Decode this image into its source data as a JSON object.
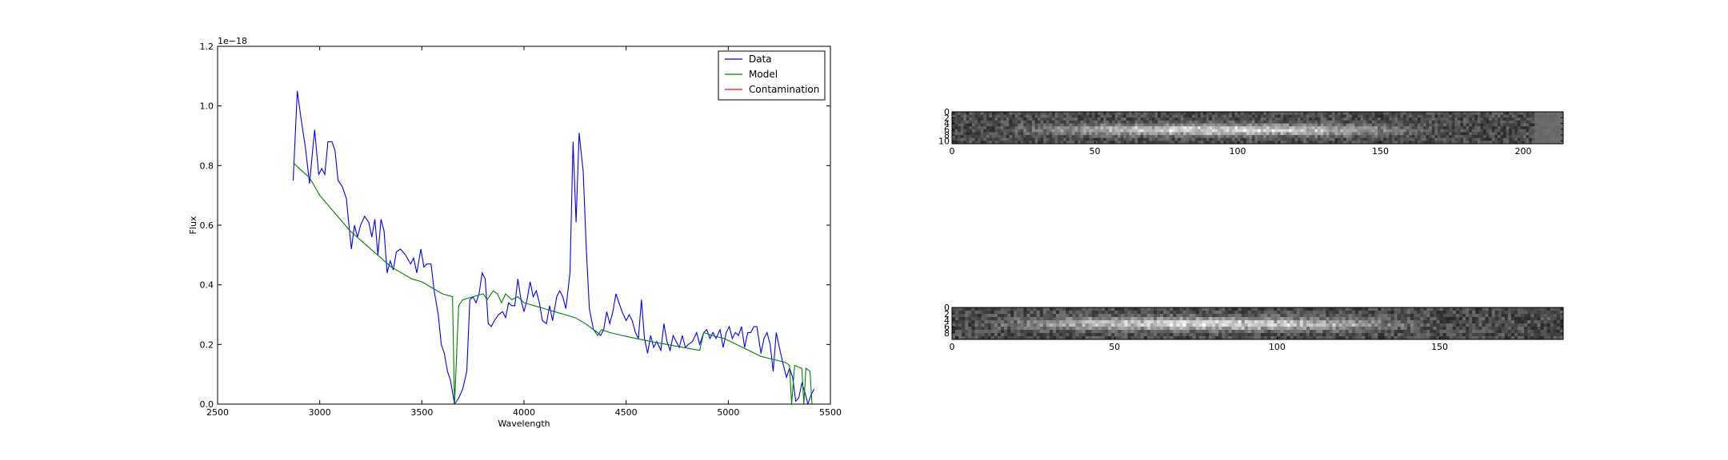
{
  "chart_data": [
    {
      "type": "line",
      "xlabel": "Wavelength",
      "ylabel": "Flux",
      "offset_text": "1e−18",
      "xlim": [
        2500,
        5500
      ],
      "ylim": [
        0.0,
        1.2
      ],
      "xticks": [
        2500,
        3000,
        3500,
        4000,
        4500,
        5000,
        5500
      ],
      "yticks": [
        0.0,
        0.2,
        0.4,
        0.6,
        0.8,
        1.0,
        1.2
      ],
      "xtick_labels": [
        "2500",
        "3000",
        "3500",
        "4000",
        "4500",
        "5000",
        "5500"
      ],
      "ytick_labels": [
        "0.0",
        "0.2",
        "0.4",
        "0.6",
        "0.8",
        "1.0",
        "1.2"
      ],
      "legend_position": "top-right",
      "series": [
        {
          "name": "Data",
          "color": "#0000ff",
          "points": [
            [
              2870,
              0.75
            ],
            [
              2890,
              1.05
            ],
            [
              2910,
              0.95
            ],
            [
              2930,
              0.86
            ],
            [
              2950,
              0.74
            ],
            [
              2975,
              0.92
            ],
            [
              2995,
              0.77
            ],
            [
              3010,
              0.79
            ],
            [
              3025,
              0.77
            ],
            [
              3040,
              0.88
            ],
            [
              3060,
              0.88
            ],
            [
              3075,
              0.85
            ],
            [
              3090,
              0.75
            ],
            [
              3110,
              0.73
            ],
            [
              3130,
              0.69
            ],
            [
              3155,
              0.52
            ],
            [
              3170,
              0.6
            ],
            [
              3185,
              0.56
            ],
            [
              3200,
              0.6
            ],
            [
              3220,
              0.63
            ],
            [
              3240,
              0.61
            ],
            [
              3255,
              0.56
            ],
            [
              3270,
              0.62
            ],
            [
              3285,
              0.5
            ],
            [
              3300,
              0.62
            ],
            [
              3315,
              0.58
            ],
            [
              3330,
              0.44
            ],
            [
              3345,
              0.48
            ],
            [
              3360,
              0.45
            ],
            [
              3375,
              0.51
            ],
            [
              3395,
              0.52
            ],
            [
              3420,
              0.5
            ],
            [
              3445,
              0.47
            ],
            [
              3460,
              0.49
            ],
            [
              3475,
              0.44
            ],
            [
              3495,
              0.52
            ],
            [
              3510,
              0.46
            ],
            [
              3525,
              0.47
            ],
            [
              3545,
              0.47
            ],
            [
              3560,
              0.38
            ],
            [
              3580,
              0.3
            ],
            [
              3595,
              0.2
            ],
            [
              3610,
              0.17
            ],
            [
              3625,
              0.11
            ],
            [
              3640,
              0.08
            ],
            [
              3660,
              0.0
            ],
            [
              3680,
              0.02
            ],
            [
              3700,
              0.05
            ],
            [
              3720,
              0.11
            ],
            [
              3735,
              0.35
            ],
            [
              3750,
              0.36
            ],
            [
              3765,
              0.34
            ],
            [
              3780,
              0.37
            ],
            [
              3795,
              0.44
            ],
            [
              3810,
              0.42
            ],
            [
              3825,
              0.27
            ],
            [
              3840,
              0.26
            ],
            [
              3855,
              0.28
            ],
            [
              3875,
              0.3
            ],
            [
              3895,
              0.31
            ],
            [
              3910,
              0.29
            ],
            [
              3925,
              0.34
            ],
            [
              3940,
              0.33
            ],
            [
              3955,
              0.33
            ],
            [
              3970,
              0.42
            ],
            [
              3985,
              0.35
            ],
            [
              4000,
              0.31
            ],
            [
              4015,
              0.35
            ],
            [
              4030,
              0.41
            ],
            [
              4045,
              0.36
            ],
            [
              4060,
              0.38
            ],
            [
              4075,
              0.34
            ],
            [
              4090,
              0.28
            ],
            [
              4110,
              0.27
            ],
            [
              4125,
              0.33
            ],
            [
              4140,
              0.28
            ],
            [
              4160,
              0.36
            ],
            [
              4175,
              0.38
            ],
            [
              4190,
              0.36
            ],
            [
              4205,
              0.32
            ],
            [
              4225,
              0.44
            ],
            [
              4240,
              0.88
            ],
            [
              4255,
              0.61
            ],
            [
              4270,
              0.91
            ],
            [
              4290,
              0.78
            ],
            [
              4305,
              0.52
            ],
            [
              4320,
              0.32
            ],
            [
              4340,
              0.25
            ],
            [
              4360,
              0.24
            ],
            [
              4375,
              0.23
            ],
            [
              4390,
              0.25
            ],
            [
              4405,
              0.31
            ],
            [
              4420,
              0.27
            ],
            [
              4435,
              0.31
            ],
            [
              4450,
              0.37
            ],
            [
              4465,
              0.34
            ],
            [
              4480,
              0.31
            ],
            [
              4500,
              0.28
            ],
            [
              4515,
              0.3
            ],
            [
              4530,
              0.28
            ],
            [
              4545,
              0.24
            ],
            [
              4560,
              0.22
            ],
            [
              4575,
              0.35
            ],
            [
              4590,
              0.22
            ],
            [
              4605,
              0.17
            ],
            [
              4620,
              0.23
            ],
            [
              4635,
              0.19
            ],
            [
              4650,
              0.21
            ],
            [
              4670,
              0.18
            ],
            [
              4685,
              0.27
            ],
            [
              4700,
              0.21
            ],
            [
              4715,
              0.18
            ],
            [
              4730,
              0.23
            ],
            [
              4745,
              0.21
            ],
            [
              4760,
              0.19
            ],
            [
              4775,
              0.23
            ],
            [
              4790,
              0.19
            ],
            [
              4805,
              0.2
            ],
            [
              4825,
              0.21
            ],
            [
              4845,
              0.24
            ],
            [
              4860,
              0.2
            ],
            [
              4880,
              0.24
            ],
            [
              4895,
              0.25
            ],
            [
              4910,
              0.22
            ],
            [
              4925,
              0.24
            ],
            [
              4940,
              0.22
            ],
            [
              4960,
              0.25
            ],
            [
              4975,
              0.19
            ],
            [
              4990,
              0.24
            ],
            [
              5005,
              0.26
            ],
            [
              5020,
              0.22
            ],
            [
              5035,
              0.24
            ],
            [
              5050,
              0.23
            ],
            [
              5065,
              0.26
            ],
            [
              5080,
              0.19
            ],
            [
              5095,
              0.24
            ],
            [
              5110,
              0.24
            ],
            [
              5125,
              0.26
            ],
            [
              5140,
              0.26
            ],
            [
              5160,
              0.17
            ],
            [
              5175,
              0.22
            ],
            [
              5190,
              0.24
            ],
            [
              5205,
              0.2
            ],
            [
              5220,
              0.11
            ],
            [
              5235,
              0.24
            ],
            [
              5250,
              0.19
            ],
            [
              5270,
              0.13
            ],
            [
              5285,
              0.09
            ],
            [
              5300,
              0.12
            ],
            [
              5315,
              0.09
            ],
            [
              5330,
              0.01
            ],
            [
              5345,
              0.02
            ],
            [
              5360,
              0.07
            ],
            [
              5375,
              0.04
            ],
            [
              5390,
              0.0
            ],
            [
              5405,
              0.03
            ],
            [
              5420,
              0.05
            ]
          ]
        },
        {
          "name": "Model",
          "color": "#008000",
          "points": [
            [
              2870,
              0.81
            ],
            [
              2900,
              0.79
            ],
            [
              2950,
              0.76
            ],
            [
              3000,
              0.7
            ],
            [
              3050,
              0.66
            ],
            [
              3100,
              0.62
            ],
            [
              3150,
              0.58
            ],
            [
              3200,
              0.55
            ],
            [
              3250,
              0.52
            ],
            [
              3300,
              0.49
            ],
            [
              3350,
              0.46
            ],
            [
              3400,
              0.44
            ],
            [
              3450,
              0.42
            ],
            [
              3500,
              0.41
            ],
            [
              3550,
              0.39
            ],
            [
              3600,
              0.37
            ],
            [
              3650,
              0.36
            ],
            [
              3660,
              0.0
            ],
            [
              3680,
              0.33
            ],
            [
              3700,
              0.35
            ],
            [
              3750,
              0.36
            ],
            [
              3800,
              0.37
            ],
            [
              3820,
              0.35
            ],
            [
              3850,
              0.38
            ],
            [
              3870,
              0.37
            ],
            [
              3890,
              0.34
            ],
            [
              3910,
              0.37
            ],
            [
              3940,
              0.35
            ],
            [
              3970,
              0.36
            ],
            [
              4000,
              0.34
            ],
            [
              4050,
              0.33
            ],
            [
              4100,
              0.32
            ],
            [
              4150,
              0.31
            ],
            [
              4200,
              0.3
            ],
            [
              4250,
              0.29
            ],
            [
              4300,
              0.27
            ],
            [
              4340,
              0.25
            ],
            [
              4360,
              0.23
            ],
            [
              4380,
              0.25
            ],
            [
              4420,
              0.24
            ],
            [
              4480,
              0.23
            ],
            [
              4550,
              0.22
            ],
            [
              4620,
              0.21
            ],
            [
              4700,
              0.2
            ],
            [
              4780,
              0.19
            ],
            [
              4860,
              0.18
            ],
            [
              4880,
              0.24
            ],
            [
              4920,
              0.23
            ],
            [
              4980,
              0.22
            ],
            [
              5040,
              0.2
            ],
            [
              5100,
              0.18
            ],
            [
              5160,
              0.16
            ],
            [
              5220,
              0.15
            ],
            [
              5280,
              0.14
            ],
            [
              5300,
              0.13
            ],
            [
              5310,
              0.0
            ],
            [
              5325,
              0.13
            ],
            [
              5360,
              0.12
            ],
            [
              5370,
              0.0
            ],
            [
              5380,
              0.12
            ],
            [
              5400,
              0.11
            ],
            [
              5410,
              0.0
            ]
          ]
        },
        {
          "name": "Contamination",
          "color": "#ff0000",
          "points": []
        }
      ]
    },
    {
      "type": "heatmap",
      "xlim": [
        0,
        214
      ],
      "ylim": [
        0,
        11
      ],
      "xticks": [
        0,
        50,
        100,
        150,
        200
      ],
      "xtick_labels": [
        "0",
        "50",
        "100",
        "150",
        "200"
      ],
      "yticks": [
        0,
        2,
        4,
        6,
        8,
        10
      ],
      "ytick_labels": [
        "0",
        "2",
        "4",
        "6",
        "8",
        "10"
      ],
      "colormap": "gray"
    },
    {
      "type": "heatmap",
      "xlim": [
        0,
        188
      ],
      "ylim": [
        0,
        10
      ],
      "xticks": [
        0,
        50,
        100,
        150
      ],
      "xtick_labels": [
        "0",
        "50",
        "100",
        "150"
      ],
      "yticks": [
        0,
        2,
        4,
        6,
        8
      ],
      "ytick_labels": [
        "0",
        "2",
        "4",
        "6",
        "8"
      ],
      "colormap": "gray"
    }
  ]
}
